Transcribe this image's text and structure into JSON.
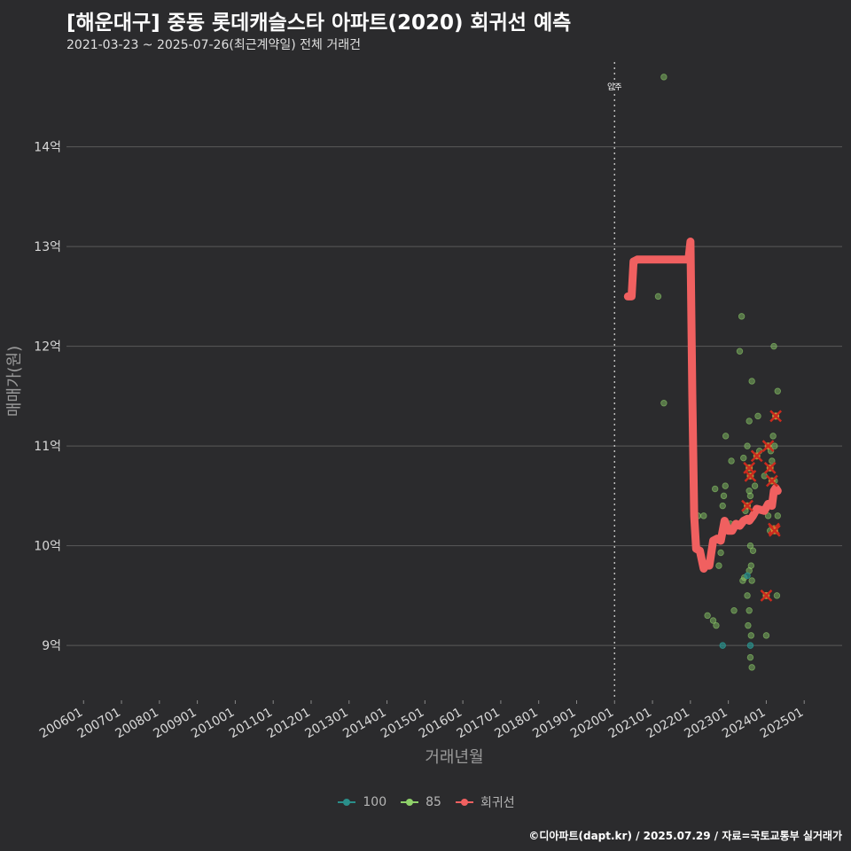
{
  "header": {
    "title": "[해운대구] 중동 롯데캐슬스타 아파트(2020) 회귀선 예측",
    "subtitle": "2021-03-23 ~ 2025-07-26(최근계약일) 전체 거래건"
  },
  "footer": {
    "credit": "©디아파트(dapt.kr) / 2025.07.29 / 자료=국토교통부 실거래가"
  },
  "colors": {
    "background": "#2b2b2d",
    "grid": "#5a5a5a",
    "series_100": "#2a8f8a",
    "series_85": "#8fd16a",
    "regression": "#f06060",
    "highlight": "#cc2a1e",
    "vline": "#bbbbbb"
  },
  "legend": {
    "items": [
      {
        "label": "100",
        "color_key": "series_100"
      },
      {
        "label": "85",
        "color_key": "series_85"
      },
      {
        "label": "회귀선",
        "color_key": "regression"
      }
    ]
  },
  "chart_data": {
    "type": "scatter",
    "xlabel": "거래년월",
    "ylabel": "매매가(원)",
    "xlim": [
      2005.55,
      2026.0
    ],
    "ylim": [
      8.45,
      14.85
    ],
    "x_ticks": [
      {
        "value": 2006,
        "label": "200601"
      },
      {
        "value": 2007,
        "label": "200701"
      },
      {
        "value": 2008,
        "label": "200801"
      },
      {
        "value": 2009,
        "label": "200901"
      },
      {
        "value": 2010,
        "label": "201001"
      },
      {
        "value": 2011,
        "label": "201101"
      },
      {
        "value": 2012,
        "label": "201201"
      },
      {
        "value": 2013,
        "label": "201301"
      },
      {
        "value": 2014,
        "label": "201401"
      },
      {
        "value": 2015,
        "label": "201501"
      },
      {
        "value": 2016,
        "label": "201601"
      },
      {
        "value": 2017,
        "label": "201701"
      },
      {
        "value": 2018,
        "label": "201801"
      },
      {
        "value": 2019,
        "label": "201901"
      },
      {
        "value": 2020,
        "label": "202001"
      },
      {
        "value": 2021,
        "label": "202101"
      },
      {
        "value": 2022,
        "label": "202201"
      },
      {
        "value": 2023,
        "label": "202301"
      },
      {
        "value": 2024,
        "label": "202401"
      },
      {
        "value": 2025,
        "label": "202501"
      }
    ],
    "y_ticks": [
      {
        "value": 9,
        "label": "9억"
      },
      {
        "value": 10,
        "label": "10억"
      },
      {
        "value": 11,
        "label": "11억"
      },
      {
        "value": 12,
        "label": "12억"
      },
      {
        "value": 13,
        "label": "13억"
      },
      {
        "value": 14,
        "label": "14억"
      }
    ],
    "move_in": {
      "x": 2020.0,
      "label": "입주"
    },
    "series": [
      {
        "name": "85",
        "points": [
          [
            2021.3,
            14.7
          ],
          [
            2021.15,
            12.5
          ],
          [
            2021.3,
            11.43
          ],
          [
            2022.2,
            10.3
          ],
          [
            2022.35,
            10.3
          ],
          [
            2022.45,
            9.3
          ],
          [
            2022.6,
            9.25
          ],
          [
            2022.68,
            9.2
          ],
          [
            2022.65,
            10.57
          ],
          [
            2022.75,
            9.8
          ],
          [
            2022.8,
            9.93
          ],
          [
            2022.85,
            10.4
          ],
          [
            2022.88,
            10.5
          ],
          [
            2022.92,
            10.6
          ],
          [
            2022.93,
            11.1
          ],
          [
            2023.05,
            10.22
          ],
          [
            2023.15,
            9.35
          ],
          [
            2023.25,
            10.2
          ],
          [
            2023.3,
            11.95
          ],
          [
            2023.35,
            12.3
          ],
          [
            2023.38,
            9.65
          ],
          [
            2023.42,
            9.68
          ],
          [
            2023.45,
            10.25
          ],
          [
            2023.5,
            9.5
          ],
          [
            2023.52,
            9.2
          ],
          [
            2023.55,
            9.35
          ],
          [
            2023.58,
            8.88
          ],
          [
            2023.6,
            9.1
          ],
          [
            2023.62,
            8.78
          ],
          [
            2023.55,
            9.75
          ],
          [
            2023.58,
            10.0
          ],
          [
            2023.6,
            9.8
          ],
          [
            2023.62,
            9.65
          ],
          [
            2023.65,
            9.95
          ],
          [
            2023.55,
            10.55
          ],
          [
            2023.58,
            10.5
          ],
          [
            2023.55,
            11.25
          ],
          [
            2023.62,
            11.65
          ],
          [
            2023.7,
            10.6
          ],
          [
            2023.75,
            10.35
          ],
          [
            2023.78,
            11.3
          ],
          [
            2023.82,
            10.95
          ],
          [
            2023.95,
            10.7
          ],
          [
            2024.0,
            9.1
          ],
          [
            2024.05,
            10.3
          ],
          [
            2024.1,
            10.15
          ],
          [
            2024.12,
            10.95
          ],
          [
            2024.15,
            10.85
          ],
          [
            2024.18,
            11.1
          ],
          [
            2024.2,
            12.0
          ],
          [
            2024.22,
            11.0
          ],
          [
            2024.25,
            11.3
          ],
          [
            2024.3,
            11.55
          ],
          [
            2024.3,
            10.3
          ],
          [
            2024.28,
            9.5
          ],
          [
            2024.22,
            10.65
          ],
          [
            2024.25,
            10.55
          ],
          [
            2023.5,
            11.0
          ],
          [
            2023.4,
            10.88
          ],
          [
            2023.08,
            10.85
          ],
          [
            2023.45,
            10.35
          ]
        ]
      },
      {
        "name": "100",
        "points": [
          [
            2022.85,
            9.0
          ],
          [
            2023.58,
            9.0
          ],
          [
            2023.5,
            9.7
          ]
        ]
      },
      {
        "name": "회귀선",
        "line": [
          [
            2020.35,
            12.5
          ],
          [
            2020.45,
            12.5
          ],
          [
            2020.5,
            12.85
          ],
          [
            2020.6,
            12.87
          ],
          [
            2021.0,
            12.87
          ],
          [
            2021.5,
            12.87
          ],
          [
            2021.95,
            12.87
          ],
          [
            2022.0,
            13.05
          ],
          [
            2022.05,
            11.5
          ],
          [
            2022.1,
            10.3
          ],
          [
            2022.15,
            9.97
          ],
          [
            2022.25,
            9.95
          ],
          [
            2022.35,
            9.77
          ],
          [
            2022.4,
            9.8
          ],
          [
            2022.45,
            9.82
          ],
          [
            2022.5,
            9.8
          ],
          [
            2022.6,
            10.05
          ],
          [
            2022.7,
            10.07
          ],
          [
            2022.8,
            10.05
          ],
          [
            2022.9,
            10.25
          ],
          [
            2023.0,
            10.15
          ],
          [
            2023.1,
            10.15
          ],
          [
            2023.2,
            10.22
          ],
          [
            2023.3,
            10.2
          ],
          [
            2023.4,
            10.25
          ],
          [
            2023.5,
            10.27
          ],
          [
            2023.55,
            10.25
          ],
          [
            2023.65,
            10.3
          ],
          [
            2023.75,
            10.37
          ],
          [
            2023.85,
            10.36
          ],
          [
            2023.95,
            10.35
          ],
          [
            2024.05,
            10.42
          ],
          [
            2024.15,
            10.4
          ],
          [
            2024.2,
            10.55
          ],
          [
            2024.25,
            10.58
          ],
          [
            2024.3,
            10.55
          ]
        ],
        "highlights": [
          [
            2023.5,
            10.4
          ],
          [
            2023.55,
            10.78
          ],
          [
            2023.58,
            10.7
          ],
          [
            2023.75,
            10.9
          ],
          [
            2024.0,
            9.5
          ],
          [
            2024.05,
            11.0
          ],
          [
            2024.1,
            10.78
          ],
          [
            2024.15,
            10.65
          ],
          [
            2024.25,
            11.3
          ],
          [
            2024.2,
            10.17
          ],
          [
            2024.22,
            10.15
          ]
        ]
      }
    ]
  }
}
